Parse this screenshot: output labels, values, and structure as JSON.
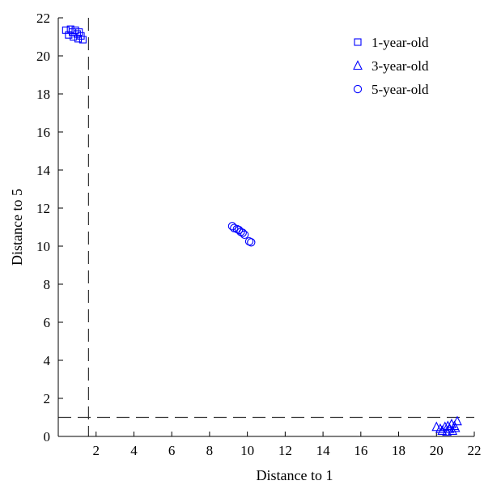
{
  "chart_data": {
    "type": "scatter",
    "title": "",
    "xlabel": "Distance to 1",
    "ylabel": "Distance to 5",
    "xlim": [
      0,
      22
    ],
    "ylim": [
      0,
      22
    ],
    "x_ticks": [
      2,
      4,
      6,
      8,
      10,
      12,
      14,
      16,
      18,
      20,
      22
    ],
    "x_tick_labels": [
      "2",
      "4",
      "6",
      "8",
      "10",
      "12",
      "14",
      "16",
      "18",
      "20",
      "22"
    ],
    "y_ticks": [
      0,
      2,
      4,
      6,
      8,
      10,
      12,
      14,
      16,
      18,
      20,
      22
    ],
    "y_tick_labels": [
      "0",
      "2",
      "4",
      "6",
      "8",
      "10",
      "12",
      "14",
      "16",
      "18",
      "20",
      "22"
    ],
    "grid": false,
    "legend_position": "top-right",
    "marker_color": "#0000ff",
    "reference_lines": [
      {
        "orientation": "vertical",
        "x": 1.6,
        "style": "dashed"
      },
      {
        "orientation": "horizontal",
        "y": 1.0,
        "style": "dashed"
      }
    ],
    "series": [
      {
        "name": "1-year-old",
        "marker": "square",
        "points": [
          [
            0.4,
            21.35
          ],
          [
            0.55,
            21.1
          ],
          [
            0.65,
            21.4
          ],
          [
            0.75,
            21.25
          ],
          [
            0.8,
            21.0
          ],
          [
            0.9,
            21.35
          ],
          [
            1.0,
            21.15
          ],
          [
            1.05,
            20.9
          ],
          [
            1.1,
            21.25
          ],
          [
            1.2,
            21.05
          ],
          [
            1.3,
            20.85
          ]
        ]
      },
      {
        "name": "3-year-old",
        "marker": "triangle",
        "points": [
          [
            20.0,
            0.5
          ],
          [
            20.2,
            0.4
          ],
          [
            20.3,
            0.3
          ],
          [
            20.45,
            0.5
          ],
          [
            20.55,
            0.25
          ],
          [
            20.6,
            0.55
          ],
          [
            20.7,
            0.4
          ],
          [
            20.8,
            0.65
          ],
          [
            20.85,
            0.3
          ],
          [
            20.95,
            0.55
          ],
          [
            21.0,
            0.45
          ],
          [
            21.1,
            0.8
          ]
        ]
      },
      {
        "name": "5-year-old",
        "marker": "circle",
        "points": [
          [
            9.2,
            11.05
          ],
          [
            9.3,
            10.95
          ],
          [
            9.45,
            10.9
          ],
          [
            9.55,
            10.85
          ],
          [
            9.65,
            10.75
          ],
          [
            9.75,
            10.7
          ],
          [
            9.85,
            10.6
          ],
          [
            10.1,
            10.25
          ],
          [
            10.2,
            10.2
          ]
        ]
      }
    ]
  }
}
